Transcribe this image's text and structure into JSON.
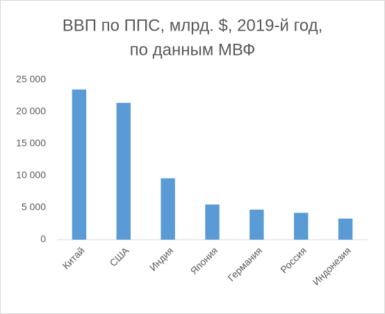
{
  "chart_data": {
    "type": "bar",
    "title": [
      "ВВП по ППС, млрд. $, 2019-й год,",
      "по данным МВФ"
    ],
    "categories": [
      "Китай",
      "США",
      "Индия",
      "Япония",
      "Германия",
      "Россия",
      "Индонезия"
    ],
    "values": [
      23500,
      21400,
      9600,
      5500,
      4700,
      4200,
      3300
    ],
    "color": "#5b9bd5",
    "ylim": [
      0,
      25000
    ],
    "yticks": [
      0,
      {
        "value": 5000,
        "label": "5 000"
      },
      {
        "value": 10000,
        "label": "10 000"
      },
      {
        "value": 15000,
        "label": "15 000"
      },
      {
        "value": 20000,
        "label": "20 000"
      },
      {
        "value": 25000,
        "label": "25 000"
      }
    ],
    "grid": false
  }
}
